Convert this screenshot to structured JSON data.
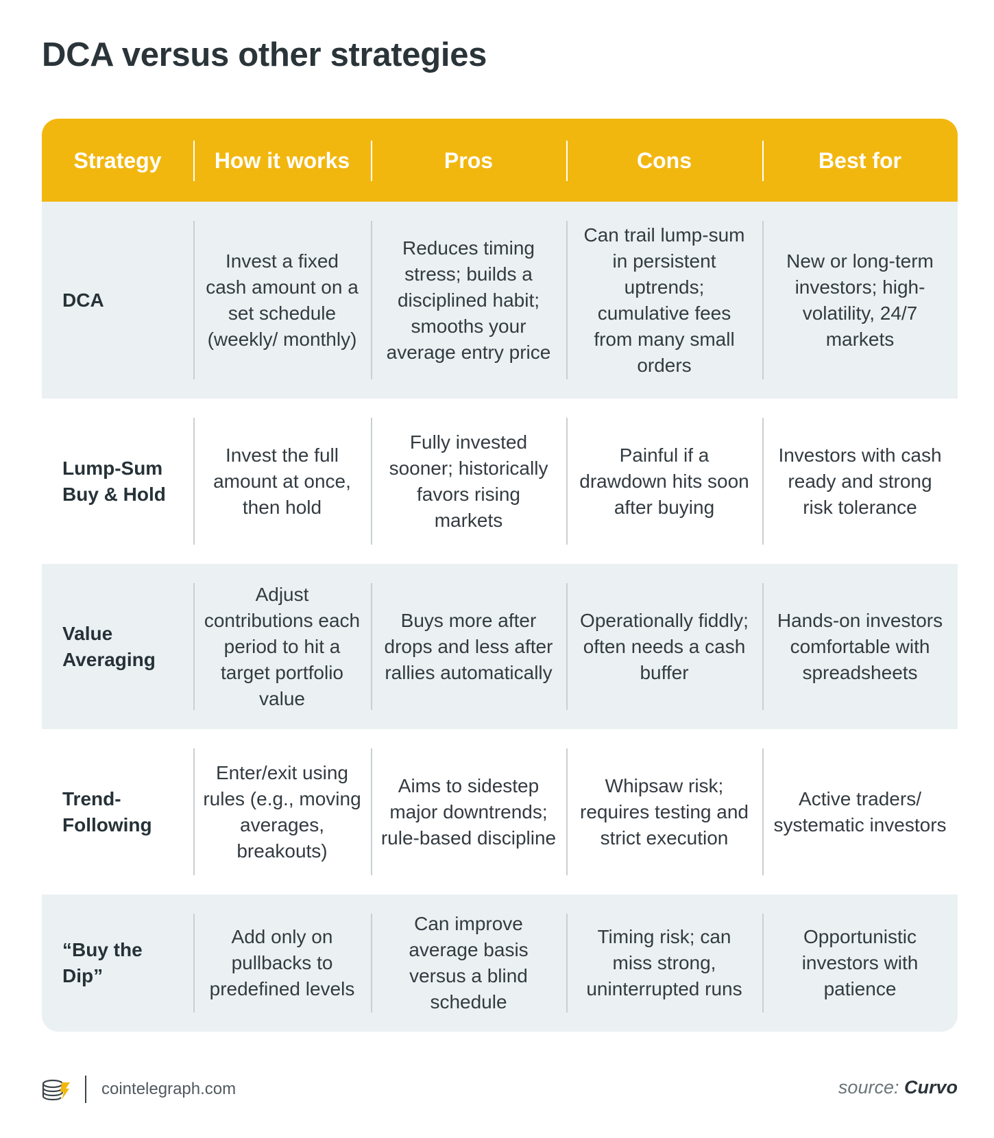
{
  "title": "DCA versus other strategies",
  "table": {
    "headers": [
      "Strategy",
      "How it works",
      "Pros",
      "Cons",
      "Best for"
    ],
    "rows": [
      {
        "strategy": "DCA",
        "how": "Invest a fixed cash amount on a set schedule (weekly/ monthly)",
        "pros": "Reduces timing stress; builds a disciplined habit; smooths your average entry price",
        "cons": "Can trail lump-sum in persistent uptrends; cumulative fees from many small orders",
        "best": "New or long-term investors; high-volatility, 24/7 markets"
      },
      {
        "strategy": "Lump-Sum Buy & Hold",
        "how": "Invest the full amount at once, then hold",
        "pros": "Fully invested sooner; historically favors rising markets",
        "cons": "Painful if a drawdown hits soon after buying",
        "best": "Investors with cash ready and strong risk tolerance"
      },
      {
        "strategy": "Value Averaging",
        "how": "Adjust contributions each period to hit a target portfolio value",
        "pros": "Buys more after drops and less after rallies automatically",
        "cons": "Operationally fiddly; often needs a cash buffer",
        "best": "Hands-on investors comfortable with spreadsheets"
      },
      {
        "strategy": "Trend-Following",
        "how": "Enter/exit using rules (e.g., moving averages, breakouts)",
        "pros": "Aims to sidestep major downtrends; rule-based discipline",
        "cons": "Whipsaw risk; requires testing and strict execution",
        "best": "Active traders/ systematic investors"
      },
      {
        "strategy": "“Buy the Dip”",
        "how": "Add only on pullbacks to predefined levels",
        "pros": "Can improve average basis versus a blind schedule",
        "cons": "Timing risk; can miss strong, uninterrupted runs",
        "best": "Opportunistic investors with patience"
      }
    ]
  },
  "footer": {
    "logo_icon": "cointelegraph-logo-icon",
    "site": "cointelegraph.com",
    "source_label": "source:",
    "source_name": "Curvo"
  },
  "colors": {
    "header_bg": "#f2b70f",
    "row_shade": "#ebf1f3",
    "text_dark": "#2a3439"
  }
}
